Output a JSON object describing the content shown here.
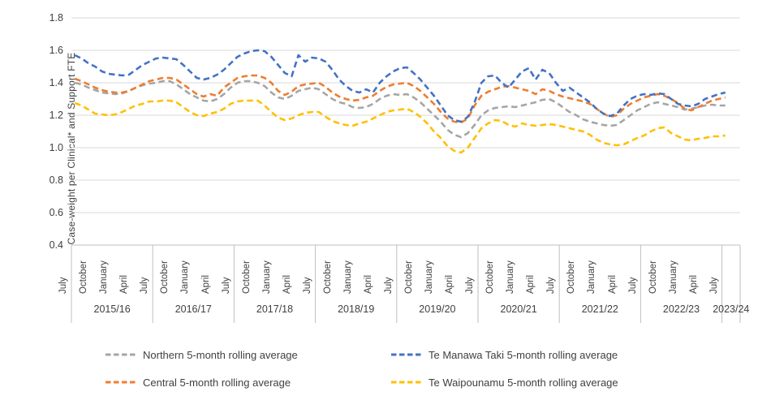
{
  "chart_data": {
    "type": "line",
    "title": "",
    "y_axis": {
      "title": "Case-weight per Clinical* and Support FTE",
      "min": 0.4,
      "max": 1.8,
      "tick_step": 0.2,
      "tick_labels": [
        "1.8",
        "1.6",
        "1.4",
        "1.2",
        "1.0",
        "0.8",
        "0.6",
        "0.4"
      ]
    },
    "x_axis": {
      "frequency": "monthly",
      "start": "July 2015",
      "end": "July 2023",
      "month_tick_labels": [
        "July",
        "October",
        "January",
        "April"
      ],
      "year_groups": [
        "2015/16",
        "2016/17",
        "2017/18",
        "2018/19",
        "2019/20",
        "2020/21",
        "2021/22",
        "2022/23",
        "2023/24"
      ],
      "last_year_month_labels": [
        "July"
      ]
    },
    "grid": true,
    "legend_position": "bottom",
    "series": [
      {
        "name": "Northern 5-month rolling average",
        "color": "#A5A5A5",
        "values": [
          1.4,
          1.39,
          1.37,
          1.355,
          1.34,
          1.335,
          1.33,
          1.335,
          1.35,
          1.37,
          1.385,
          1.395,
          1.4,
          1.41,
          1.41,
          1.39,
          1.36,
          1.33,
          1.31,
          1.29,
          1.285,
          1.3,
          1.33,
          1.37,
          1.4,
          1.41,
          1.41,
          1.4,
          1.38,
          1.34,
          1.31,
          1.3,
          1.32,
          1.35,
          1.36,
          1.37,
          1.36,
          1.33,
          1.3,
          1.28,
          1.27,
          1.25,
          1.245,
          1.25,
          1.27,
          1.3,
          1.32,
          1.33,
          1.325,
          1.33,
          1.31,
          1.28,
          1.24,
          1.2,
          1.16,
          1.11,
          1.08,
          1.065,
          1.09,
          1.14,
          1.2,
          1.23,
          1.245,
          1.25,
          1.255,
          1.25,
          1.26,
          1.27,
          1.28,
          1.295,
          1.3,
          1.28,
          1.25,
          1.22,
          1.2,
          1.175,
          1.16,
          1.15,
          1.14,
          1.135,
          1.14,
          1.17,
          1.2,
          1.23,
          1.25,
          1.27,
          1.28,
          1.27,
          1.26,
          1.25,
          1.235,
          1.24,
          1.25,
          1.26,
          1.265,
          1.26,
          1.26
        ]
      },
      {
        "name": "Te Manawa Taki 5-month rolling average",
        "color": "#4472C4",
        "values": [
          1.57,
          1.55,
          1.52,
          1.5,
          1.47,
          1.455,
          1.45,
          1.445,
          1.45,
          1.48,
          1.51,
          1.53,
          1.55,
          1.555,
          1.55,
          1.545,
          1.51,
          1.47,
          1.43,
          1.42,
          1.43,
          1.45,
          1.48,
          1.52,
          1.56,
          1.58,
          1.595,
          1.6,
          1.595,
          1.56,
          1.51,
          1.46,
          1.44,
          1.57,
          1.53,
          1.555,
          1.55,
          1.53,
          1.48,
          1.42,
          1.38,
          1.35,
          1.34,
          1.36,
          1.34,
          1.4,
          1.44,
          1.47,
          1.49,
          1.495,
          1.46,
          1.42,
          1.37,
          1.32,
          1.26,
          1.2,
          1.17,
          1.16,
          1.19,
          1.28,
          1.4,
          1.44,
          1.445,
          1.4,
          1.37,
          1.42,
          1.47,
          1.49,
          1.42,
          1.48,
          1.46,
          1.4,
          1.35,
          1.37,
          1.34,
          1.31,
          1.28,
          1.24,
          1.21,
          1.195,
          1.21,
          1.26,
          1.3,
          1.32,
          1.33,
          1.325,
          1.335,
          1.33,
          1.3,
          1.27,
          1.26,
          1.255,
          1.27,
          1.3,
          1.315,
          1.33,
          1.34
        ]
      },
      {
        "name": "Central 5-month rolling average",
        "color": "#ED7D31",
        "values": [
          1.425,
          1.41,
          1.39,
          1.37,
          1.355,
          1.345,
          1.34,
          1.34,
          1.35,
          1.37,
          1.39,
          1.41,
          1.42,
          1.43,
          1.43,
          1.42,
          1.39,
          1.36,
          1.33,
          1.315,
          1.33,
          1.32,
          1.37,
          1.4,
          1.43,
          1.44,
          1.445,
          1.445,
          1.43,
          1.4,
          1.35,
          1.325,
          1.345,
          1.38,
          1.39,
          1.395,
          1.4,
          1.375,
          1.34,
          1.315,
          1.3,
          1.29,
          1.295,
          1.31,
          1.32,
          1.35,
          1.375,
          1.39,
          1.395,
          1.4,
          1.38,
          1.35,
          1.31,
          1.27,
          1.22,
          1.18,
          1.16,
          1.155,
          1.18,
          1.26,
          1.32,
          1.345,
          1.36,
          1.375,
          1.38,
          1.37,
          1.36,
          1.35,
          1.33,
          1.36,
          1.35,
          1.33,
          1.315,
          1.305,
          1.295,
          1.285,
          1.27,
          1.24,
          1.21,
          1.19,
          1.2,
          1.24,
          1.27,
          1.29,
          1.31,
          1.32,
          1.33,
          1.32,
          1.3,
          1.275,
          1.24,
          1.23,
          1.25,
          1.27,
          1.29,
          1.3,
          1.31
        ]
      },
      {
        "name": "Te Waipounamu 5-month rolling average",
        "color": "#FFC000",
        "values": [
          1.275,
          1.26,
          1.235,
          1.21,
          1.205,
          1.2,
          1.205,
          1.22,
          1.24,
          1.26,
          1.27,
          1.285,
          1.285,
          1.29,
          1.29,
          1.28,
          1.25,
          1.22,
          1.2,
          1.195,
          1.21,
          1.22,
          1.24,
          1.27,
          1.285,
          1.29,
          1.29,
          1.29,
          1.26,
          1.22,
          1.185,
          1.17,
          1.18,
          1.2,
          1.215,
          1.22,
          1.22,
          1.19,
          1.165,
          1.15,
          1.14,
          1.135,
          1.15,
          1.16,
          1.18,
          1.2,
          1.22,
          1.23,
          1.235,
          1.24,
          1.22,
          1.19,
          1.15,
          1.1,
          1.06,
          1.01,
          0.98,
          0.97,
          1.0,
          1.06,
          1.12,
          1.15,
          1.17,
          1.165,
          1.14,
          1.13,
          1.15,
          1.14,
          1.135,
          1.14,
          1.145,
          1.14,
          1.13,
          1.12,
          1.11,
          1.1,
          1.08,
          1.05,
          1.03,
          1.02,
          1.015,
          1.02,
          1.04,
          1.06,
          1.075,
          1.1,
          1.12,
          1.125,
          1.09,
          1.07,
          1.05,
          1.045,
          1.055,
          1.06,
          1.07,
          1.07,
          1.075
        ]
      }
    ],
    "legend_order": [
      0,
      1,
      2,
      3
    ],
    "colors": {
      "gridline": "#D9D9D9",
      "axis_line": "#BFBFBF",
      "text": "#404040",
      "background": "#FFFFFF"
    }
  }
}
